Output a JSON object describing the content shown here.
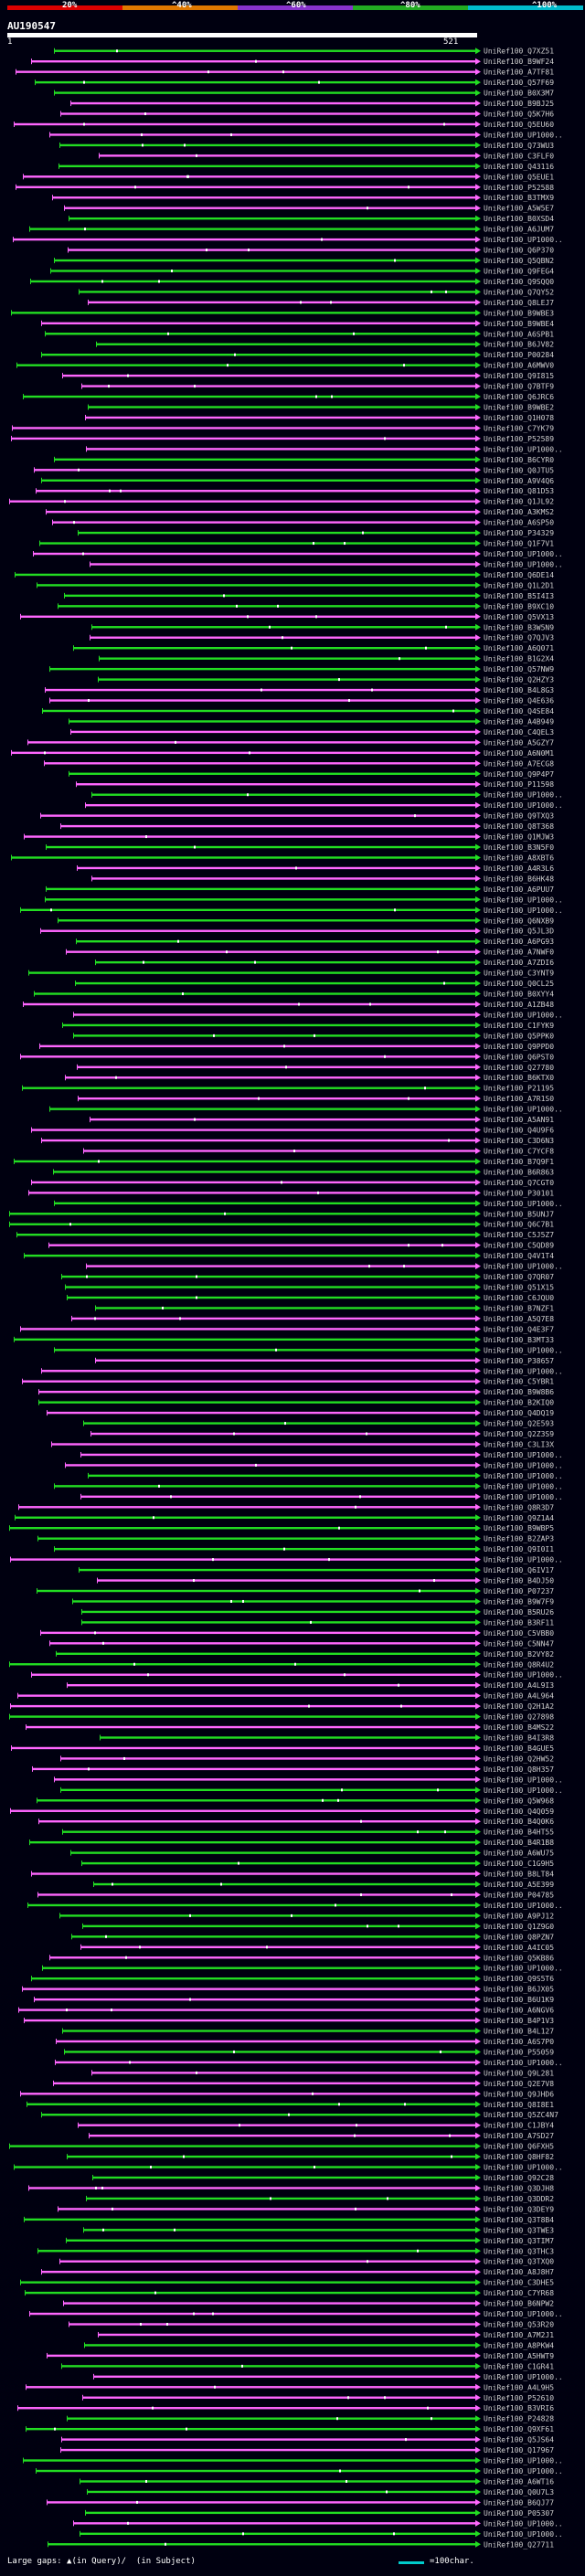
{
  "query": {
    "id": "AU190547",
    "start": "1",
    "end": "521"
  },
  "scale": {
    "labels": [
      "20%",
      "^40%",
      "^60%",
      "^80%",
      "^100%"
    ],
    "colors": [
      "#dd0000",
      "#e07800",
      "#8833cc",
      "#22aa22",
      "#00bbcc"
    ]
  },
  "colors": {
    "pink": "#ff66ff",
    "green": "#22dd22",
    "label": "#d0d0d0",
    "marker": "#ffffff"
  },
  "footer": {
    "prefix": "Large gaps:",
    "query_gap": "(in Query)/",
    "subject_gap": "(in Subject)",
    "scale_label": "=100char."
  },
  "hits": [
    "UniRef100_Q7XZ51",
    "UniRef100_B9WF24",
    "UniRef100_A7TF81",
    "UniRef100_Q57F69",
    "UniRef100_B0X3M7",
    "UniRef100_B9BJ25",
    "UniRef100_Q5K7H6",
    "UniRef100_Q5EU60",
    "UniRef100_UP1000..",
    "UniRef100_Q73WU3",
    "UniRef100_C3FLF0",
    "UniRef100_Q43116",
    "UniRef100_Q5EUE1",
    "UniRef100_P52588",
    "UniRef100_B3TMX9",
    "UniRef100_A5W5E7",
    "UniRef100_B0XSD4",
    "UniRef100_A6JUM7",
    "UniRef100_UP1000..",
    "UniRef100_Q6P370",
    "UniRef100_Q5QBN2",
    "UniRef100_Q9FEG4",
    "UniRef100_Q9SQQ0",
    "UniRef100_Q7QY52",
    "UniRef100_Q8LEJ7",
    "UniRef100_B9WBE3",
    "UniRef100_B9WBE4",
    "UniRef100_A6SPB1",
    "UniRef100_B6JV82",
    "UniRef100_P00284",
    "UniRef100_A6MWV0",
    "UniRef100_Q9I815",
    "UniRef100_Q7BTF9",
    "UniRef100_Q6JRC6",
    "UniRef100_B9WBE2",
    "UniRef100_Q1H078",
    "UniRef100_C7YK79",
    "UniRef100_P52589",
    "UniRef100_UP1000..",
    "UniRef100_B6CYR0",
    "UniRef100_Q0JTU5",
    "UniRef100_A9V4Q6",
    "UniRef100_Q81D53",
    "UniRef100_Q1JL92",
    "UniRef100_A3KMS2",
    "UniRef100_A6SP50",
    "UniRef100_P34329",
    "UniRef100_Q1F7V1",
    "UniRef100_UP1000..",
    "UniRef100_UP1000..",
    "UniRef100_Q6DE14",
    "UniRef100_Q1L2D1",
    "UniRef100_B5I4I3",
    "UniRef100_B9XC10",
    "UniRef100_Q5VX13",
    "UniRef100_B3W5N9",
    "UniRef100_Q7QJV3",
    "UniRef100_A6Q071",
    "UniRef100_B1G2X4",
    "UniRef100_Q57NW9",
    "UniRef100_Q2HZY3",
    "UniRef100_B4L8G3",
    "UniRef100_Q4E636",
    "UniRef100_Q4SE84",
    "UniRef100_A4B949",
    "UniRef100_C4QEL3",
    "UniRef100_A5GZY7",
    "UniRef100_A6N0M1",
    "UniRef100_A7ECG8",
    "UniRef100_Q9P4P7",
    "UniRef100_P11598",
    "UniRef100_UP1000..",
    "UniRef100_UP1000..",
    "UniRef100_Q9TXQ3",
    "UniRef100_Q8T368",
    "UniRef100_Q1MJW3",
    "UniRef100_B3N5F0",
    "UniRef100_A8XBT6",
    "UniRef100_A4R3L6",
    "UniRef100_B6HK48",
    "UniRef100_A6PUU7",
    "UniRef100_UP1000..",
    "UniRef100_UP1000..",
    "UniRef100_Q6NXB9",
    "UniRef100_Q5JL3D",
    "UniRef100_A6PG93",
    "UniRef100_A7NWF0",
    "UniRef100_A7ZDI6",
    "UniRef100_C3YNT9",
    "UniRef100_Q0CL25",
    "UniRef100_B0XYY4",
    "UniRef100_A1ZB48",
    "UniRef100_UP1000..",
    "UniRef100_C1FYK9",
    "UniRef100_Q5PPK0",
    "UniRef100_Q9PPD0",
    "UniRef100_Q6PST0",
    "UniRef100_Q27780",
    "UniRef100_B6KTX0",
    "UniRef100_P21195",
    "UniRef100_A7R1S0",
    "UniRef100_UP1000..",
    "UniRef100_A5AN91",
    "UniRef100_Q4U9F6",
    "UniRef100_C3D6N3",
    "UniRef100_C7YCF8",
    "UniRef100_B7Q9F1",
    "UniRef100_B6R863",
    "UniRef100_Q7CGT0",
    "UniRef100_P30101",
    "UniRef100_UP1000..",
    "UniRef100_B5UNJ7",
    "UniRef100_Q6C7B1",
    "UniRef100_C5J5Z7",
    "UniRef100_C5QD89",
    "UniRef100_Q4V1T4",
    "UniRef100_UP1000..",
    "UniRef100_Q7QR07",
    "UniRef100_Q51X15",
    "UniRef100_C6JQU0",
    "UniRef100_B7NZF1",
    "UniRef100_A5Q7E8",
    "UniRef100_Q4E3F7",
    "UniRef100_B3MT33",
    "UniRef100_UP1000..",
    "UniRef100_P38657",
    "UniRef100_UP1000..",
    "UniRef100_C5YBR1",
    "UniRef100_B9W8B6",
    "UniRef100_B2KIQ0",
    "UniRef100_Q4DQ19",
    "UniRef100_Q2E593",
    "UniRef100_Q2Z3S9",
    "UniRef100_C3LI3X",
    "UniRef100_UP1000..",
    "UniRef100_UP1000..",
    "UniRef100_UP1000..",
    "UniRef100_UP1000..",
    "UniRef100_UP1000..",
    "UniRef100_Q8R3D7",
    "UniRef100_Q9Z1A4",
    "UniRef100_B9WBP5",
    "UniRef100_B2ZAP3",
    "UniRef100_Q9I0I1",
    "UniRef100_UP1000..",
    "UniRef100_Q6IV17",
    "UniRef100_B4DJ50",
    "UniRef100_P07237",
    "UniRef100_B9W7F9",
    "UniRef100_B5RU26",
    "UniRef100_B3RF11",
    "UniRef100_C5VBB0",
    "UniRef100_C5NN47",
    "UniRef100_B2VY82",
    "UniRef100_Q8R4U2",
    "UniRef100_UP1000..",
    "UniRef100_A4L9I3",
    "UniRef100_A4L964",
    "UniRef100_Q2H1A2",
    "UniRef100_Q27898",
    "UniRef100_B4MS22",
    "UniRef100_B4I3R8",
    "UniRef100_B4GUE5",
    "UniRef100_Q2HW52",
    "UniRef100_Q8H357",
    "UniRef100_UP1000..",
    "UniRef100_UP1000..",
    "UniRef100_Q5W968",
    "UniRef100_Q4Q059",
    "UniRef100_B4Q0K6",
    "UniRef100_B4HT55",
    "UniRef100_B4R1B8",
    "UniRef100_A6WU75",
    "UniRef100_C1G9H5",
    "UniRef100_B8LT84",
    "UniRef100_A5E399",
    "UniRef100_P04785",
    "UniRef100_UP1000..",
    "UniRef100_A9PJ12",
    "UniRef100_Q1Z9G0",
    "UniRef100_Q8PZN7",
    "UniRef100_A4IC05",
    "UniRef100_Q5KB86",
    "UniRef100_UP1000..",
    "UniRef100_Q9S5T6",
    "UniRef100_B6JX05",
    "UniRef100_B6U1K9",
    "UniRef100_A6NGV6",
    "UniRef100_B4P1V3",
    "UniRef100_B4L127",
    "UniRef100_A6S7P0",
    "UniRef100_P55059",
    "UniRef100_UP1000..",
    "UniRef100_Q9L281",
    "UniRef100_Q2E7V8",
    "UniRef100_Q9JHD6",
    "UniRef100_Q8I8E1",
    "UniRef100_Q5ZC4N7",
    "UniRef100_C1JBY4",
    "UniRef100_A7SD27",
    "UniRef100_Q6FXH5",
    "UniRef100_Q8HF82",
    "UniRef100_UP1000..",
    "UniRef100_Q92C28",
    "UniRef100_Q3DJH8",
    "UniRef100_Q3DDR2",
    "UniRef100_Q3DEY9",
    "UniRef100_Q3T8B4",
    "UniRef100_Q3TWE3",
    "UniRef100_Q3TIM7",
    "UniRef100_Q3THC3",
    "UniRef100_Q3TXQ0",
    "UniRef100_A8J8H7",
    "UniRef100_C3DHE5",
    "UniRef100_C7YR68",
    "UniRef100_B6NPW2",
    "UniRef100_UP1000..",
    "UniRef100_Q53R20",
    "UniRef100_A7M2J1",
    "UniRef100_A8PKW4",
    "UniRef100_A5HWT9",
    "UniRef100_C1GR41",
    "UniRef100_UP1000..",
    "UniRef100_A4L9H5",
    "UniRef100_P52610",
    "UniRef100_B3VRI6",
    "UniRef100_P24828",
    "UniRef100_Q9XF61",
    "UniRef100_Q5JS64",
    "UniRef100_Q17967",
    "UniRef100_UP1000..",
    "UniRef100_UP1000..",
    "UniRef100_A6WT16",
    "UniRef100_Q0U7L3",
    "UniRef100_B6QJ77",
    "UniRef100_P05307",
    "UniRef100_UP1000..",
    "UniRef100_UP1000..",
    "UniRef100_Q27711"
  ]
}
